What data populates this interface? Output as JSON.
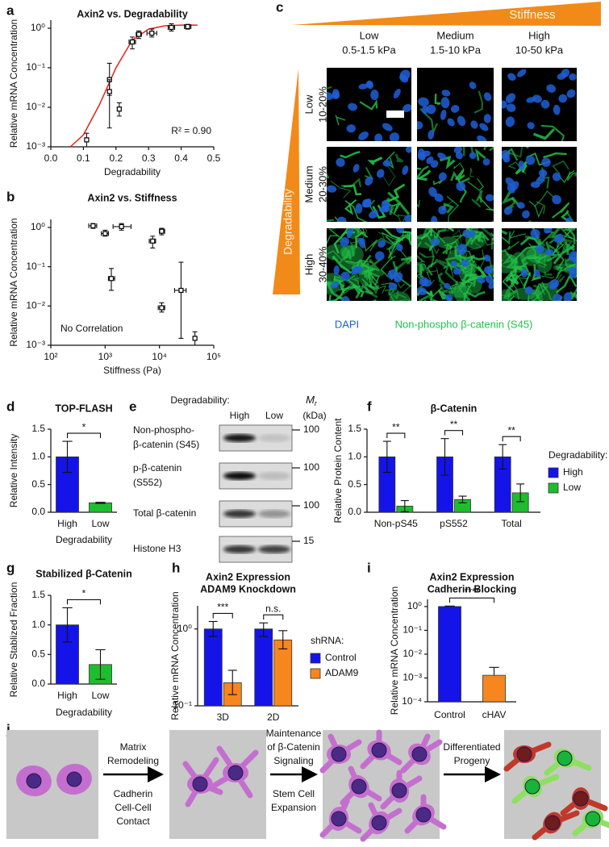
{
  "chart_data": [
    {
      "panel": "a",
      "type": "scatter",
      "title": "Axin2 vs. Degradability",
      "x_label": "Degradability",
      "y_label": "Relative mRNA Concentration",
      "annotation": "R² = 0.90",
      "annotation_color": "#e8211c",
      "color": "#000000",
      "log_y": true,
      "xlim": [
        0,
        0.5
      ],
      "xticks": [
        {
          "value": 0,
          "label": "0.0"
        },
        0.1,
        0.2,
        0.3,
        0.4,
        0.5
      ],
      "ylim": [
        0.001,
        1.6
      ],
      "yticks": [
        {
          "value": 0.001,
          "label": "10⁻³"
        },
        {
          "value": 0.01,
          "label": "10⁻²"
        },
        {
          "value": 0.1,
          "label": "10⁻¹"
        },
        {
          "value": 1,
          "label": "10⁰"
        }
      ],
      "x": [
        0.11,
        0.18,
        0.18,
        0.21,
        0.25,
        0.27,
        0.31,
        0.37,
        0.42
      ],
      "values": [
        0.0015,
        0.05,
        0.025,
        0.009,
        0.45,
        0.7,
        0.75,
        1.05,
        1.1
      ],
      "y_low": [
        0.001,
        0.02,
        0.003,
        0.006,
        0.3,
        0.55,
        0.6,
        0.85,
        0.95
      ],
      "y_high": [
        0.0022,
        0.13,
        0.05,
        0.013,
        0.6,
        0.85,
        0.95,
        1.3,
        1.25
      ],
      "x_low": [
        0.105,
        0.175,
        0.175,
        0.205,
        0.24,
        0.262,
        0.295,
        0.36,
        0.41
      ],
      "x_high": [
        0.115,
        0.185,
        0.185,
        0.215,
        0.26,
        0.278,
        0.325,
        0.38,
        0.43
      ],
      "fit": {
        "color": "#e8211c",
        "x": [
          0.06,
          0.1,
          0.15,
          0.2,
          0.25,
          0.3,
          0.35,
          0.4,
          0.45
        ],
        "values": [
          0.001,
          0.002,
          0.012,
          0.1,
          0.5,
          0.95,
          1.15,
          1.2,
          1.2
        ]
      }
    },
    {
      "panel": "b",
      "type": "scatter",
      "title": "Axin2 vs. Stiffness",
      "x_label": "Stiffness (Pa)",
      "y_label": "Relative mRNA Concentration",
      "annotation": "No Correlation",
      "annotation_color": "#e8211c",
      "color": "#000000",
      "log_y": true,
      "log_x": true,
      "xlim": [
        100,
        100000
      ],
      "xticks": [
        {
          "value": 100,
          "label": "10²"
        },
        {
          "value": 1000,
          "label": "10³"
        },
        {
          "value": 10000,
          "label": "10⁴"
        },
        {
          "value": 100000,
          "label": "10⁵"
        }
      ],
      "ylim": [
        0.001,
        1.6
      ],
      "yticks": [
        {
          "value": 0.001,
          "label": "10⁻³"
        },
        {
          "value": 0.01,
          "label": "10⁻²"
        },
        {
          "value": 0.1,
          "label": "10⁻¹"
        },
        {
          "value": 1,
          "label": "10⁰"
        }
      ],
      "x": [
        600,
        1000,
        2000,
        1300,
        7500,
        11000,
        11000,
        25000,
        45000
      ],
      "values": [
        1.1,
        0.7,
        1.05,
        0.05,
        0.45,
        0.8,
        0.009,
        0.025,
        0.0015
      ],
      "y_low": [
        0.95,
        0.6,
        0.85,
        0.025,
        0.3,
        0.65,
        0.007,
        0.0015,
        0.001
      ],
      "y_high": [
        1.25,
        0.85,
        1.25,
        0.09,
        0.6,
        0.95,
        0.012,
        0.13,
        0.0022
      ],
      "x_low": [
        500,
        850,
        1400,
        1150,
        6500,
        10000,
        9500,
        19000,
        42000
      ],
      "x_high": [
        700,
        1150,
        3000,
        1500,
        8500,
        12500,
        12500,
        31000,
        48000
      ]
    },
    {
      "panel": "d",
      "type": "bar",
      "title": "TOP-FLASH",
      "x_label": "Degradability",
      "y_label": "Relative Intensity",
      "categories": [
        "High",
        "Low"
      ],
      "values": [
        1.0,
        0.17
      ],
      "errors": [
        0.28,
        0.01
      ],
      "colors": [
        "#1414e8",
        "#1dbe2e"
      ],
      "ylim": [
        0,
        1.5
      ],
      "yticks": [
        {
          "value": 0,
          "label": "0.0"
        },
        0.5,
        {
          "value": 1,
          "label": "1.0"
        },
        1.5
      ],
      "significance": "*"
    },
    {
      "panel": "f",
      "type": "grouped_bar",
      "title": "β-Catenin",
      "y_label": "Relative Protein Content",
      "legend_title": "Degradability:",
      "categories": [
        "Non-pS45",
        "pS552",
        "Total"
      ],
      "series": [
        {
          "name": "High",
          "color": "#1414e8",
          "values": [
            1.0,
            1.0,
            1.0
          ],
          "errors": [
            0.28,
            0.33,
            0.22
          ]
        },
        {
          "name": "Low",
          "color": "#1dbe2e",
          "values": [
            0.11,
            0.23,
            0.35
          ],
          "errors": [
            0.1,
            0.06,
            0.16
          ]
        }
      ],
      "ylim": [
        0,
        1.5
      ],
      "yticks": [
        {
          "value": 0,
          "label": "0.0"
        },
        0.5,
        {
          "value": 1,
          "label": "1.0"
        },
        1.5
      ],
      "significance": [
        "**",
        "**",
        "**"
      ]
    },
    {
      "panel": "g",
      "type": "bar",
      "title": "Stabilized β-Catenin",
      "x_label": "Degradability",
      "y_label": "Relative Stablized Fraction",
      "categories": [
        "High",
        "Low"
      ],
      "values": [
        1.0,
        0.33
      ],
      "errors": [
        0.29,
        0.25
      ],
      "colors": [
        "#1414e8",
        "#1dbe2e"
      ],
      "ylim": [
        0,
        1.5
      ],
      "yticks": [
        {
          "value": 0,
          "label": "0.0"
        },
        0.5,
        {
          "value": 1,
          "label": "1.0"
        },
        1.5
      ],
      "significance": "*"
    },
    {
      "panel": "h",
      "type": "grouped_bar",
      "title": [
        "Axin2 Expression",
        "ADAM9 Knockdown"
      ],
      "y_label": "Relative mRNA Concentration",
      "legend_title": "shRNA:",
      "log_y": true,
      "categories": [
        "3D",
        "2D"
      ],
      "series": [
        {
          "name": "Control",
          "color": "#1414e8",
          "values": [
            1.0,
            1.0
          ],
          "err_low": [
            0.8,
            0.8
          ],
          "err_high": [
            1.25,
            1.2
          ]
        },
        {
          "name": "ADAM9",
          "color": "#f7861e",
          "values": [
            0.2,
            0.72
          ],
          "err_low": [
            0.14,
            0.55
          ],
          "err_high": [
            0.29,
            0.95
          ]
        }
      ],
      "ylim": [
        0.1,
        2
      ],
      "yticks": [
        {
          "value": 0.1,
          "label": "10⁻¹"
        },
        {
          "value": 1,
          "label": "10⁰"
        }
      ],
      "significance": [
        "***",
        "n.s."
      ]
    },
    {
      "panel": "i",
      "type": "bar",
      "title": [
        "Axin2  Expression",
        "Cadherin Blocking"
      ],
      "y_label": "Relative mRNA Concentration",
      "log_y": true,
      "categories": [
        "Control",
        "cHAV"
      ],
      "values": [
        1.0,
        0.0013
      ],
      "err_high": [
        1.05,
        0.0028
      ],
      "colors": [
        "#1414e8",
        "#f7861e"
      ],
      "ylim": [
        0.0001,
        2
      ],
      "yticks": [
        {
          "value": 0.0001,
          "label": "10⁻⁴"
        },
        {
          "value": 0.001,
          "label": "10⁻³"
        },
        {
          "value": 0.01,
          "label": "10⁻²"
        },
        {
          "value": 0.1,
          "label": "10⁻¹"
        },
        {
          "value": 1,
          "label": "10⁰"
        }
      ],
      "significance": "****"
    }
  ],
  "micrographs": {
    "panel": "c",
    "header": "Stiffness",
    "side_label": "Degradability",
    "columns": [
      {
        "label": "Low",
        "range": "0.5-1.5 kPa"
      },
      {
        "label": "Medium",
        "range": "1.5-10 kPa"
      },
      {
        "label": "High",
        "range": "10-50 kPa"
      }
    ],
    "rows": [
      {
        "label": "Low",
        "range": "10-20%"
      },
      {
        "label": "Medium",
        "range": "20-30%"
      },
      {
        "label": "High",
        "range": "30-40%"
      }
    ],
    "stains": [
      {
        "name": "DAPI",
        "color": "#1f5fd6"
      },
      {
        "name": "Non-phospho β-catenin (S45)",
        "color": "#22c24a"
      }
    ]
  },
  "western_blot": {
    "panel": "e",
    "header": "Degradability:",
    "lanes": [
      "High",
      "Low"
    ],
    "mw_label": "M",
    "mw_sub": "r",
    "mw_unit": "(kDa)",
    "rows": [
      {
        "label": [
          "Non-phospho-",
          "β-catenin (S45)"
        ],
        "marker": 100
      },
      {
        "label": [
          "p-β-catenin",
          "(S552)"
        ],
        "marker": 100
      },
      {
        "label": [
          "Total β-catenin"
        ],
        "marker": 100
      },
      {
        "label": [
          "Histone H3"
        ],
        "marker": 15
      }
    ]
  },
  "schematic": {
    "panel": "j",
    "steps": [
      {
        "above": [
          "Matrix",
          "Remodeling"
        ],
        "below": [
          "Cadherin",
          "Cell-Cell",
          "Contact"
        ]
      },
      {
        "above": [
          "Maintenance",
          "of β-Catenin",
          "Signaling"
        ],
        "below": [
          "Stem Cell",
          "Expansion"
        ]
      },
      {
        "above": [
          "Differentiated",
          "Progeny"
        ]
      }
    ]
  }
}
